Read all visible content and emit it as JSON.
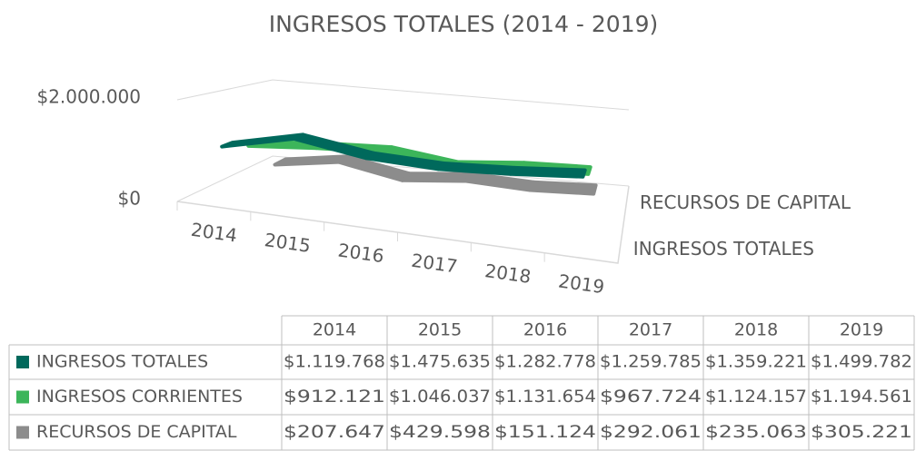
{
  "chart_data": {
    "type": "line",
    "title": "INGRESOS TOTALES (2014 - 2019)",
    "categories": [
      "2014",
      "2015",
      "2016",
      "2017",
      "2018",
      "2019"
    ],
    "series": [
      {
        "name": "INGRESOS TOTALES",
        "color": "#00695c",
        "values": [
          1119768,
          1475635,
          1282778,
          1259785,
          1359221,
          1499782
        ],
        "value_labels": [
          "$1.119.768",
          "$1.475.635",
          "$1.282.778",
          "$1.259.785",
          "$1.359.221",
          "$1.499.782"
        ]
      },
      {
        "name": "INGRESOS CORRIENTES",
        "color": "#3cb55a",
        "values": [
          912121,
          1046037,
          1131654,
          967724,
          1124157,
          1194561
        ],
        "value_labels": [
          "$912.121",
          "$1.046.037",
          "$1.131.654",
          "$967.724",
          "$1.124.157",
          "$1.194.561"
        ]
      },
      {
        "name": "RECURSOS DE CAPITAL",
        "color": "#8c8c8c",
        "values": [
          207647,
          429598,
          151124,
          292061,
          235063,
          305221
        ],
        "value_labels": [
          "$207.647",
          "$429.598",
          "$151.124",
          "$292.061",
          "$235.063",
          "$305.221"
        ]
      }
    ],
    "ylim": [
      0,
      2000000
    ],
    "yticks": [
      {
        "value": 0,
        "label": "$0"
      },
      {
        "value": 2000000,
        "label": "$2.000.000"
      }
    ],
    "grid": true
  }
}
